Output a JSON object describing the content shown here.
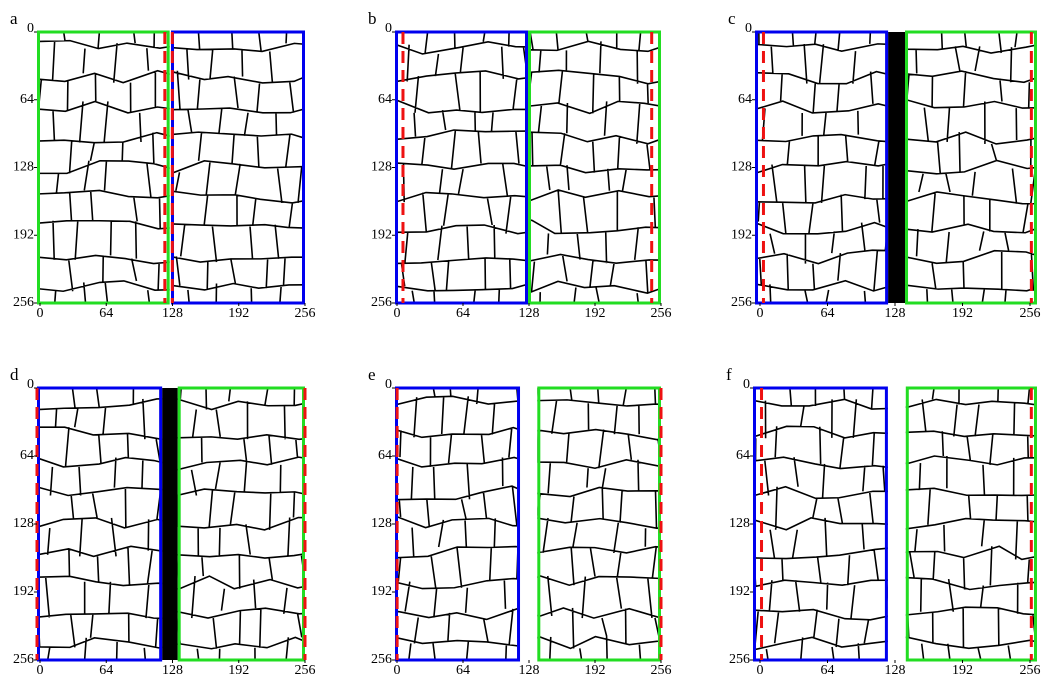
{
  "panels": [
    {
      "label": "a",
      "xlim": [
        0,
        256
      ],
      "ylim": [
        0,
        256
      ],
      "xticks": [
        0,
        64,
        128,
        192,
        256
      ],
      "yticks": [
        0,
        64,
        128,
        192,
        256
      ]
    },
    {
      "label": "b",
      "xlim": [
        0,
        256
      ],
      "ylim": [
        0,
        256
      ],
      "xticks": [
        0,
        64,
        128,
        192,
        256
      ],
      "yticks": [
        0,
        64,
        128,
        192,
        256
      ]
    },
    {
      "label": "c",
      "xlim": [
        0,
        256
      ],
      "ylim": [
        0,
        256
      ],
      "xticks": [
        0,
        64,
        128,
        192,
        256
      ],
      "yticks": [
        0,
        64,
        128,
        192,
        256
      ]
    },
    {
      "label": "d",
      "xlim": [
        0,
        256
      ],
      "ylim": [
        0,
        256
      ],
      "xticks": [
        0,
        64,
        128,
        192,
        256
      ],
      "yticks": [
        0,
        64,
        128,
        192,
        256
      ]
    },
    {
      "label": "e",
      "xlim": [
        0,
        256
      ],
      "ylim": [
        0,
        256
      ],
      "xticks": [
        0,
        64,
        128,
        192,
        256
      ],
      "yticks": [
        0,
        64,
        128,
        192,
        256
      ]
    },
    {
      "label": "f",
      "xlim": [
        0,
        256
      ],
      "ylim": [
        0,
        256
      ],
      "xticks": [
        0,
        64,
        128,
        192,
        256
      ],
      "yticks": [
        0,
        64,
        128,
        192,
        256
      ]
    }
  ]
}
